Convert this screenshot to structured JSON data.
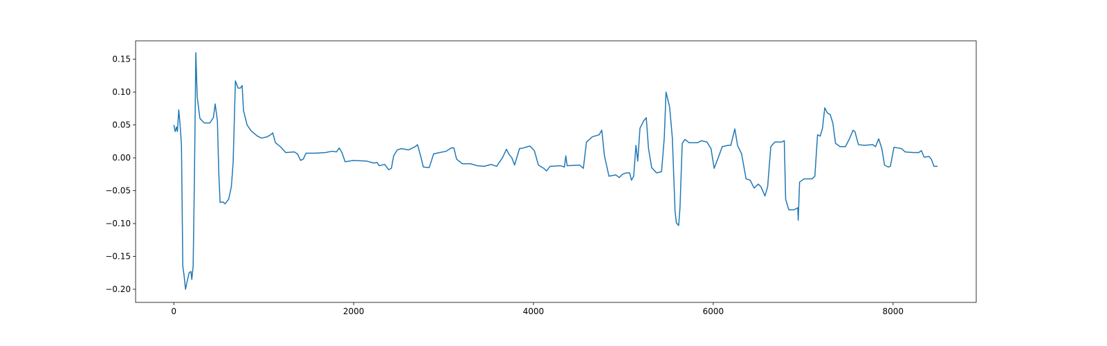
{
  "chart_data": {
    "type": "line",
    "color": "#1f77b4",
    "x": [
      0,
      15,
      30,
      40,
      55,
      70,
      85,
      100,
      115,
      130,
      145,
      170,
      190,
      200,
      215,
      230,
      245,
      260,
      290,
      340,
      400,
      440,
      460,
      485,
      500,
      515,
      545,
      570,
      610,
      640,
      660,
      685,
      715,
      740,
      760,
      775,
      815,
      860,
      930,
      975,
      1040,
      1085,
      1100,
      1130,
      1185,
      1245,
      1340,
      1375,
      1410,
      1440,
      1470,
      1570,
      1685,
      1760,
      1810,
      1840,
      1870,
      1905,
      1955,
      1990,
      2145,
      2225,
      2260,
      2285,
      2345,
      2390,
      2420,
      2445,
      2485,
      2530,
      2610,
      2685,
      2710,
      2745,
      2775,
      2840,
      2890,
      2955,
      3030,
      3085,
      3115,
      3145,
      3210,
      3300,
      3375,
      3455,
      3530,
      3590,
      3655,
      3700,
      3730,
      3760,
      3790,
      3845,
      3890,
      3960,
      4010,
      4055,
      4115,
      4145,
      4185,
      4300,
      4345,
      4360,
      4375,
      4515,
      4555,
      4590,
      4655,
      4730,
      4760,
      4790,
      4840,
      4915,
      4955,
      4990,
      5030,
      5070,
      5090,
      5115,
      5140,
      5160,
      5185,
      5225,
      5255,
      5280,
      5315,
      5370,
      5425,
      5455,
      5475,
      5515,
      5545,
      5575,
      5590,
      5615,
      5630,
      5655,
      5685,
      5730,
      5825,
      5870,
      5930,
      5975,
      6010,
      6055,
      6100,
      6165,
      6195,
      6240,
      6270,
      6315,
      6365,
      6410,
      6455,
      6500,
      6530,
      6575,
      6605,
      6640,
      6685,
      6760,
      6790,
      6805,
      6840,
      6900,
      6940,
      6945,
      6960,
      7010,
      7100,
      7130,
      7160,
      7190,
      7215,
      7240,
      7270,
      7300,
      7330,
      7360,
      7410,
      7470,
      7515,
      7555,
      7575,
      7615,
      7685,
      7775,
      7805,
      7840,
      7875,
      7905,
      7945,
      7970,
      8010,
      8055,
      8095,
      8135,
      8225,
      8285,
      8315,
      8345,
      8400,
      8425,
      8455,
      8495
    ],
    "values": [
      0.05,
      0.04,
      0.047,
      0.04,
      0.073,
      0.05,
      0.019,
      -0.165,
      -0.18,
      -0.2,
      -0.19,
      -0.175,
      -0.173,
      -0.185,
      -0.165,
      -0.023,
      0.16,
      0.093,
      0.06,
      0.053,
      0.053,
      0.061,
      0.082,
      0.056,
      -0.023,
      -0.068,
      -0.067,
      -0.07,
      -0.063,
      -0.044,
      -0.007,
      0.117,
      0.106,
      0.106,
      0.11,
      0.072,
      0.05,
      0.041,
      0.033,
      0.03,
      0.032,
      0.036,
      0.038,
      0.023,
      0.017,
      0.008,
      0.009,
      0.006,
      -0.004,
      -0.002,
      0.007,
      0.007,
      0.008,
      0.01,
      0.009,
      0.015,
      0.008,
      -0.006,
      -0.005,
      -0.004,
      -0.005,
      -0.008,
      -0.007,
      -0.012,
      -0.01,
      -0.018,
      -0.016,
      0.003,
      0.012,
      0.014,
      0.012,
      0.017,
      0.02,
      0.003,
      -0.014,
      -0.015,
      0.006,
      0.008,
      0.01,
      0.015,
      0.015,
      -0.002,
      -0.009,
      -0.009,
      -0.012,
      -0.013,
      -0.01,
      -0.013,
      0,
      0.013,
      0.005,
      0,
      -0.011,
      0.014,
      0.015,
      0.018,
      0.011,
      -0.011,
      -0.016,
      -0.02,
      -0.013,
      -0.012,
      -0.014,
      0.003,
      -0.012,
      -0.011,
      -0.016,
      0.024,
      0.032,
      0.035,
      0.042,
      0.003,
      -0.028,
      -0.026,
      -0.03,
      -0.025,
      -0.023,
      -0.023,
      -0.034,
      -0.028,
      0.019,
      -0.005,
      0.045,
      0.056,
      0.061,
      0.014,
      -0.015,
      -0.023,
      -0.021,
      0.03,
      0.1,
      0.077,
      0.03,
      -0.081,
      -0.099,
      -0.103,
      -0.076,
      0.022,
      0.028,
      0.023,
      0.023,
      0.026,
      0.024,
      0.014,
      -0.016,
      0,
      0.017,
      0.019,
      0.019,
      0.044,
      0.019,
      0.006,
      -0.032,
      -0.034,
      -0.046,
      -0.04,
      -0.044,
      -0.058,
      -0.044,
      0.017,
      0.024,
      0.024,
      0.026,
      -0.063,
      -0.079,
      -0.079,
      -0.076,
      -0.095,
      -0.037,
      -0.032,
      -0.032,
      -0.028,
      0.035,
      0.033,
      0.045,
      0.076,
      0.068,
      0.066,
      0.053,
      0.022,
      0.017,
      0.017,
      0.029,
      0.042,
      0.04,
      0.02,
      0.019,
      0.02,
      0.017,
      0.029,
      0.014,
      -0.011,
      -0.014,
      -0.013,
      0.016,
      0.015,
      0.014,
      0.009,
      0.008,
      0.008,
      0.011,
      0.001,
      0.002,
      -0.002,
      -0.013,
      -0.013
    ],
    "xlim": [
      -425,
      8925
    ],
    "ylim": [
      -0.22,
      0.178
    ],
    "xticks": [
      0,
      2000,
      4000,
      6000,
      8000
    ],
    "yticks": [
      {
        "value": -0.2,
        "label": "−0.20"
      },
      {
        "value": -0.15,
        "label": "−0.15"
      },
      {
        "value": -0.1,
        "label": "−0.10"
      },
      {
        "value": -0.05,
        "label": "−0.05"
      },
      {
        "value": 0,
        "label": "0.00"
      },
      0.05,
      {
        "value": 0.1,
        "label": "0.10"
      },
      0.15
    ]
  }
}
